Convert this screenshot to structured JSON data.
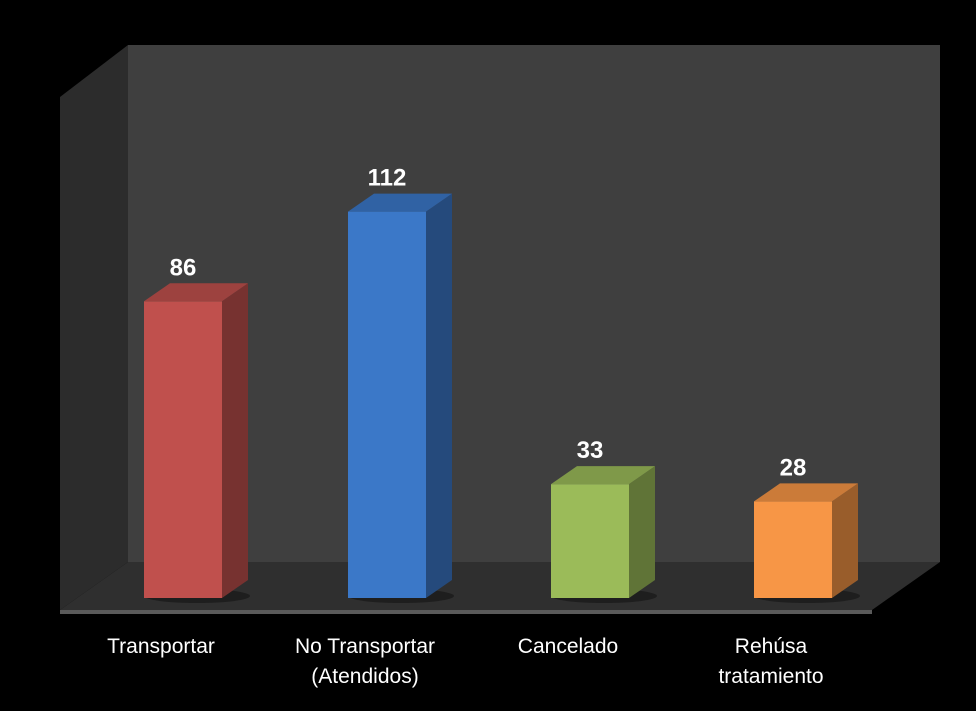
{
  "chart_data": {
    "type": "bar",
    "categories": [
      [
        "Transportar"
      ],
      [
        "No Transportar",
        "(Atendidos)"
      ],
      [
        "Cancelado"
      ],
      [
        "Rehúsa",
        "tratamiento"
      ]
    ],
    "values": [
      86,
      112,
      33,
      28
    ],
    "value_labels": [
      "86",
      "112",
      "33",
      "28"
    ],
    "colors": [
      "#c0504d",
      "#3b78c8",
      "#9bbb59",
      "#f79646"
    ],
    "ylim": [
      0,
      120
    ],
    "grid": false,
    "legend": "none",
    "style": "3d-column"
  }
}
